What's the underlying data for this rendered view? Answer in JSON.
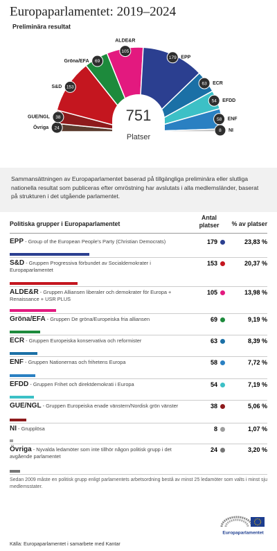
{
  "chart_data": {
    "type": "hemicycle",
    "title": "Europaparlamentet: 2019–2024",
    "subtitle": "Preliminära resultat",
    "total": 751,
    "total_label": "Platser",
    "categories": [
      "Övriga",
      "GUE/NGL",
      "S&D",
      "Gröna/EFA",
      "ALDE&R",
      "EPP",
      "ECR",
      "EFDD",
      "ENF",
      "NI"
    ],
    "values": [
      24,
      38,
      153,
      69,
      105,
      179,
      63,
      54,
      58,
      8
    ],
    "colors": [
      "#5b3b2e",
      "#8e1a1c",
      "#c4161f",
      "#1d8a3c",
      "#e3197f",
      "#2b3f90",
      "#1b70a6",
      "#3cc0c6",
      "#2a80c2",
      "#bdbdbd"
    ]
  },
  "intro": "Sammansättningen av Europaparlamentet baserad på tillgängliga preliminära eller slutliga nationella resultat som publiceras efter omröstning har avslutats i alla medlemsländer, baserat på strukturen i det utgående parlamentet.",
  "table": {
    "header": [
      "Politiska grupper i Europaparlamentet",
      "Antal platser",
      "% av platser"
    ],
    "rows": [
      {
        "group": "EPP",
        "description": "Group of the European People's Party (Christian Democrats)",
        "seats": 179,
        "percent": "23,83 %",
        "color": "#2b3f90"
      },
      {
        "group": "S&D",
        "description": "Gruppen Progressiva förbundet av Socialdemokrater i Europaparlamentet",
        "seats": 153,
        "percent": "20,37 %",
        "color": "#c4161f"
      },
      {
        "group": "ALDE&R",
        "description": "Gruppen Alliansen liberaler och demokrater för Europa + Renaissance + USR PLUS",
        "seats": 105,
        "percent": "13,98 %",
        "color": "#e3197f"
      },
      {
        "group": "Gröna/EFA",
        "description": "Gruppen De gröna/Europeiska fria alliansen",
        "seats": 69,
        "percent": "9,19 %",
        "color": "#1d8a3c"
      },
      {
        "group": "ECR",
        "description": "Gruppen Europeiska konservativa och reformister",
        "seats": 63,
        "percent": "8,39 %",
        "color": "#1b70a6"
      },
      {
        "group": "ENF",
        "description": "Gruppen Nationernas och frihetens Europa",
        "seats": 58,
        "percent": "7,72 %",
        "color": "#2a80c2"
      },
      {
        "group": "EFDD",
        "description": "Gruppen Frihet och direktdemokrati i Europa",
        "seats": 54,
        "percent": "7,19 %",
        "color": "#3cc0c6"
      },
      {
        "group": "GUE/NGL",
        "description": "Gruppen Europeiska enade vänstern/Nordisk grön vänster",
        "seats": 38,
        "percent": "5,06 %",
        "color": "#8e1a1c"
      },
      {
        "group": "NI",
        "description": "Grupplösa",
        "seats": 8,
        "percent": "1,07 %",
        "color": "#9e9e9e"
      },
      {
        "group": "Övriga",
        "description": "Nyvalda ledamöter som inte tillhör någon politisk grupp i det avgående parlamentet",
        "seats": 24,
        "percent": "3,20 %",
        "color": "#777777"
      }
    ]
  },
  "footnote": "Sedan 2009 måste en politisk grupp enligt parlamentets arbetsordning bestå av minst 25 ledamöter som valts i minst sju medlemsstater.",
  "logo_text": "Europaparlamentet",
  "source": "Källa: Europaparlamentet i samarbete med Kantar"
}
